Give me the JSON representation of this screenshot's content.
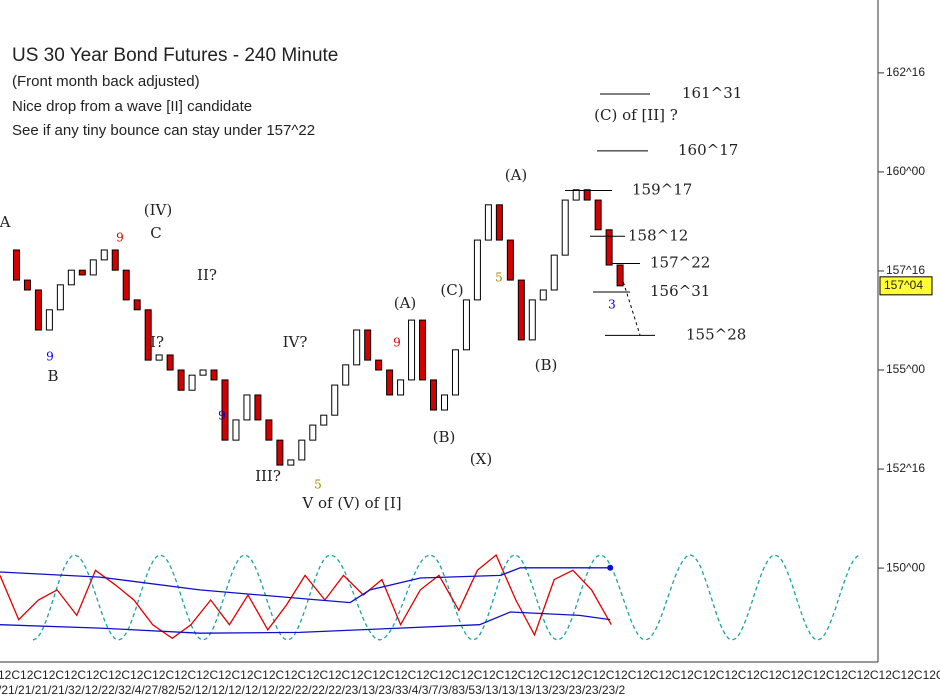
{
  "chart_data": {
    "type": "candlestick",
    "title": "US 30 Year Bond Futures - 240 Minute",
    "notes": [
      "(Front month back adjusted)",
      "Nice drop from a wave [II] candidate",
      "See if any tiny bounce can stay under 157^22"
    ],
    "close": [
      158.03,
      157.27,
      157.02,
      156.01,
      156.52,
      157.15,
      157.52,
      157.4,
      157.78,
      158.03,
      157.52,
      156.77,
      156.52,
      155.25,
      155.38,
      155.0,
      154.49,
      154.87,
      155.0,
      154.75,
      153.23,
      153.74,
      154.37,
      153.74,
      153.23,
      152.6,
      152.73,
      153.23,
      153.61,
      153.86,
      154.62,
      155.13,
      156.01,
      155.25,
      155.0,
      154.37,
      154.75,
      156.26,
      154.75,
      153.99,
      154.37,
      155.51,
      156.77,
      158.28,
      159.17,
      158.28,
      157.27,
      155.76,
      156.77,
      157.02,
      157.9,
      159.29,
      159.55,
      159.29,
      158.54,
      157.65,
      157.125
    ],
    "up_color": "#ffffff",
    "down_color": "#d40000",
    "ylim": [
      147.68,
      164.34
    ],
    "yticks": [
      {
        "value": 150,
        "label": "150^00"
      },
      {
        "value": 152.5,
        "label": "152^16"
      },
      {
        "value": 155,
        "label": "155^00"
      },
      {
        "value": 157.5,
        "label": "157^16"
      },
      {
        "value": 160,
        "label": "160^00"
      },
      {
        "value": 162.5,
        "label": "162^16"
      }
    ],
    "last": {
      "value": 157.125,
      "label": "157^04",
      "color": "#ffff33"
    },
    "levels": [
      {
        "value": 161.96875,
        "label": "161^31"
      },
      {
        "value": 160.53125,
        "label": "160^17"
      },
      {
        "value": 159.53125,
        "label": "159^17"
      },
      {
        "value": 158.375,
        "label": "158^12"
      },
      {
        "value": 157.6875,
        "label": "157^22"
      },
      {
        "value": 156.96875,
        "label": "156^31"
      },
      {
        "value": 155.875,
        "label": "155^28"
      }
    ],
    "annotations": [
      {
        "text": "A",
        "color": "#222222"
      },
      {
        "text": "9",
        "color": "#e00000"
      },
      {
        "text": "(IV)",
        "color": "#222222"
      },
      {
        "text": "C",
        "color": "#222222"
      },
      {
        "text": "II?",
        "color": "#222222"
      },
      {
        "text": "9",
        "color": "#0000dd"
      },
      {
        "text": "B",
        "color": "#222222"
      },
      {
        "text": "I?",
        "color": "#222222"
      },
      {
        "text": "9",
        "color": "#0000dd"
      },
      {
        "text": "IV?",
        "color": "#222222"
      },
      {
        "text": "III?",
        "color": "#222222"
      },
      {
        "text": "5",
        "color": "#a08a00"
      },
      {
        "text": "V of (V) of [I]",
        "color": "#222222"
      },
      {
        "text": "(A)",
        "color": "#222222"
      },
      {
        "text": "9",
        "color": "#e00000"
      },
      {
        "text": "(C)",
        "color": "#222222"
      },
      {
        "text": "5",
        "color": "#a08a00"
      },
      {
        "text": "(B)",
        "color": "#222222"
      },
      {
        "text": "(X)",
        "color": "#222222"
      },
      {
        "text": "(A)",
        "color": "#222222"
      },
      {
        "text": "(B)",
        "color": "#222222"
      },
      {
        "text": "(C) of [II] ?",
        "color": "#222222"
      },
      {
        "text": "3",
        "color": "#0000dd"
      }
    ],
    "oscillator": {
      "ylim": [
        0,
        100
      ],
      "series": [
        {
          "color": "#e00000",
          "x": [
            0,
            1.7,
            3.5,
            5.2,
            7.0,
            8.7,
            10.5,
            12.2,
            13.9,
            15.7,
            17.4,
            19.2,
            20.9,
            22.6,
            24.4,
            26.1,
            27.8,
            29.6,
            31.3,
            33.1,
            34.8,
            36.5,
            38.3,
            40.0,
            41.8,
            43.5,
            45.2,
            47.0,
            48.7,
            50.5,
            52.2,
            53.9,
            55.7
          ],
          "values": [
            76,
            24,
            47,
            59,
            29,
            82,
            65,
            47,
            18,
            2,
            18,
            47,
            18,
            53,
            12,
            41,
            76,
            47,
            76,
            53,
            71,
            18,
            59,
            76,
            35,
            82,
            100,
            47,
            6,
            71,
            82,
            59,
            18
          ]
        },
        {
          "color": "#1010cc",
          "x": [
            0,
            9.1,
            18.2,
            27.3,
            31.9,
            33.7,
            38.3,
            45.6,
            47.4,
            55.6
          ],
          "values": [
            80,
            74,
            59,
            49,
            44,
            59,
            73,
            76,
            85,
            85
          ]
        },
        {
          "color": "#1010cc",
          "x": [
            0,
            9.1,
            18.2,
            27.3,
            36.4,
            43.7,
            46.5,
            52.8,
            55.6
          ],
          "values": [
            18,
            14,
            8,
            9,
            14,
            18,
            33,
            29,
            24
          ]
        }
      ],
      "cycle": {
        "color": "#1aa3a3",
        "x": [
          3.0,
          6.8,
          10.8,
          14.6,
          18.5,
          22.3,
          26.2,
          30.1,
          34.6,
          39.2,
          43.1,
          46.9,
          50.8,
          54.7,
          58.8,
          62.9,
          66.7,
          70.6,
          74.5,
          78.4
        ],
        "values": [
          0,
          100,
          0,
          100,
          0,
          100,
          0,
          100,
          0,
          100,
          0,
          100,
          0,
          100,
          0,
          100,
          0,
          100,
          0,
          100
        ]
      }
    },
    "x_labels": [
      "12C12C12C12C12C12C12C12C12C12C12C12C12C12C12C12C12C12C12C12C12C12C12C12C12C12C12C12C12C12C12C12C12C12C12C12C12C12C12C12C12C12C12C12C12C12C12C12C12C12C12C12C12C12C12C12C12C12C12C12C12C12C12C12C12C12C12C12",
      "/21/21/21/21/32/12/22/32/4/27/82/52/12/12/12/12/12/22/22/22/22/23/13/23/33/4/3/7/3/83/53/13/13/13/13/23/23/23/23/2"
    ]
  }
}
